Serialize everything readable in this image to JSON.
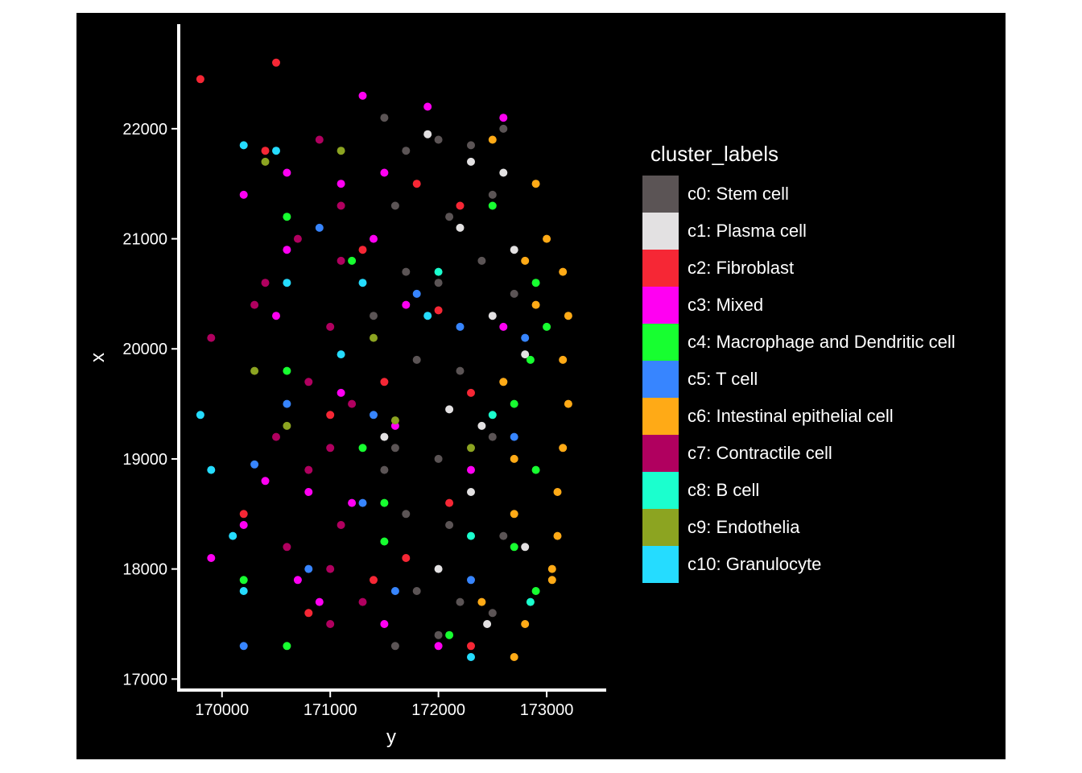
{
  "chart_data": {
    "type": "scatter",
    "xlabel": "y",
    "ylabel": "x",
    "xlim": [
      169600,
      173550
    ],
    "ylim": [
      16900,
      22950
    ],
    "xticks": [
      170000,
      171000,
      172000,
      173000
    ],
    "yticks": [
      17000,
      18000,
      19000,
      20000,
      21000,
      22000
    ],
    "xtick_labels": [
      "170000",
      "171000",
      "172000",
      "173000"
    ],
    "ytick_labels": [
      "17000",
      "18000",
      "19000",
      "20000",
      "21000",
      "22000"
    ],
    "legend_title": "cluster_labels",
    "legend_position": "right",
    "background": "#000000",
    "grid": false,
    "series": [
      {
        "name": "c0: Stem cell",
        "color": "#5B5455"
      },
      {
        "name": "c1: Plasma cell",
        "color": "#E3E1E2"
      },
      {
        "name": "c2: Fibroblast",
        "color": "#F62735"
      },
      {
        "name": "c3: Mixed",
        "color": "#FF00F2"
      },
      {
        "name": "c4: Macrophage and Dendritic cell",
        "color": "#17FF30"
      },
      {
        "name": "c5: T cell",
        "color": "#3785FF"
      },
      {
        "name": "c6: Intestinal epithelial cell",
        "color": "#FFAA16"
      },
      {
        "name": "c7: Contractile cell",
        "color": "#B0005F"
      },
      {
        "name": "c8: B cell",
        "color": "#1BFFCE"
      },
      {
        "name": "c9: Endothelia",
        "color": "#8CA421"
      },
      {
        "name": "c10: Granulocyte",
        "color": "#25DCFF"
      }
    ],
    "points": [
      [
        0,
        171500,
        22100
      ],
      [
        0,
        171700,
        21800
      ],
      [
        0,
        172000,
        21900
      ],
      [
        0,
        172300,
        21850
      ],
      [
        0,
        172600,
        22000
      ],
      [
        0,
        171600,
        21300
      ],
      [
        0,
        172100,
        21200
      ],
      [
        0,
        172500,
        21400
      ],
      [
        0,
        171700,
        20700
      ],
      [
        0,
        172000,
        20600
      ],
      [
        0,
        172400,
        20800
      ],
      [
        0,
        172700,
        20500
      ],
      [
        0,
        171800,
        19900
      ],
      [
        0,
        172200,
        19800
      ],
      [
        0,
        172600,
        19700
      ],
      [
        0,
        171600,
        19100
      ],
      [
        0,
        172000,
        19000
      ],
      [
        0,
        172500,
        19200
      ],
      [
        0,
        171700,
        18500
      ],
      [
        0,
        172100,
        18400
      ],
      [
        0,
        172600,
        18300
      ],
      [
        0,
        171800,
        17800
      ],
      [
        0,
        172200,
        17700
      ],
      [
        0,
        172500,
        17600
      ],
      [
        0,
        171600,
        17300
      ],
      [
        0,
        172000,
        17400
      ],
      [
        0,
        171400,
        20300
      ],
      [
        0,
        171500,
        18900
      ],
      [
        1,
        171900,
        21950
      ],
      [
        1,
        172300,
        21700
      ],
      [
        1,
        172600,
        21600
      ],
      [
        1,
        172200,
        21100
      ],
      [
        1,
        172700,
        20900
      ],
      [
        1,
        172500,
        20300
      ],
      [
        1,
        172800,
        19950
      ],
      [
        1,
        172100,
        19450
      ],
      [
        1,
        172400,
        19300
      ],
      [
        1,
        172300,
        18700
      ],
      [
        1,
        172800,
        18200
      ],
      [
        1,
        172000,
        18000
      ],
      [
        1,
        172450,
        17500
      ],
      [
        1,
        171500,
        19200
      ],
      [
        2,
        170500,
        22600
      ],
      [
        2,
        169800,
        22450
      ],
      [
        2,
        170400,
        21800
      ],
      [
        2,
        171800,
        21500
      ],
      [
        2,
        172200,
        21300
      ],
      [
        2,
        171300,
        20900
      ],
      [
        2,
        172000,
        20350
      ],
      [
        2,
        171500,
        19700
      ],
      [
        2,
        172300,
        19600
      ],
      [
        2,
        171000,
        19400
      ],
      [
        2,
        172100,
        18600
      ],
      [
        2,
        171700,
        18100
      ],
      [
        2,
        170200,
        18500
      ],
      [
        2,
        170800,
        17600
      ],
      [
        2,
        172300,
        17300
      ],
      [
        2,
        171400,
        17900
      ],
      [
        3,
        171300,
        22300
      ],
      [
        3,
        171900,
        22200
      ],
      [
        3,
        172600,
        22100
      ],
      [
        3,
        171500,
        21600
      ],
      [
        3,
        170600,
        21600
      ],
      [
        3,
        171100,
        21500
      ],
      [
        3,
        170200,
        21400
      ],
      [
        3,
        171400,
        21000
      ],
      [
        3,
        170600,
        20900
      ],
      [
        3,
        171700,
        20400
      ],
      [
        3,
        170500,
        20300
      ],
      [
        3,
        172600,
        20200
      ],
      [
        3,
        171100,
        19600
      ],
      [
        3,
        171600,
        19300
      ],
      [
        3,
        170400,
        18800
      ],
      [
        3,
        170800,
        18700
      ],
      [
        3,
        171200,
        18600
      ],
      [
        3,
        170200,
        18400
      ],
      [
        3,
        169900,
        18100
      ],
      [
        3,
        170700,
        17900
      ],
      [
        3,
        171500,
        17500
      ],
      [
        3,
        172000,
        17300
      ],
      [
        3,
        170900,
        17700
      ],
      [
        3,
        172300,
        18900
      ],
      [
        4,
        172500,
        21300
      ],
      [
        4,
        170600,
        21200
      ],
      [
        4,
        171200,
        20800
      ],
      [
        4,
        172900,
        20600
      ],
      [
        4,
        173000,
        20200
      ],
      [
        4,
        172850,
        19900
      ],
      [
        4,
        170600,
        19800
      ],
      [
        4,
        172700,
        19500
      ],
      [
        4,
        171300,
        19100
      ],
      [
        4,
        172900,
        18900
      ],
      [
        4,
        171500,
        18600
      ],
      [
        4,
        172700,
        18200
      ],
      [
        4,
        170200,
        17900
      ],
      [
        4,
        172900,
        17800
      ],
      [
        4,
        172100,
        17400
      ],
      [
        4,
        170600,
        17300
      ],
      [
        4,
        171500,
        18250
      ],
      [
        5,
        170900,
        21100
      ],
      [
        5,
        171800,
        20500
      ],
      [
        5,
        172800,
        20100
      ],
      [
        5,
        170600,
        19500
      ],
      [
        5,
        171400,
        19400
      ],
      [
        5,
        172700,
        19200
      ],
      [
        5,
        170300,
        18950
      ],
      [
        5,
        171300,
        18600
      ],
      [
        5,
        170800,
        18000
      ],
      [
        5,
        171600,
        17800
      ],
      [
        5,
        172300,
        17900
      ],
      [
        5,
        170200,
        17300
      ],
      [
        5,
        172200,
        20200
      ],
      [
        6,
        172500,
        21900
      ],
      [
        6,
        172900,
        21500
      ],
      [
        6,
        173000,
        21000
      ],
      [
        6,
        173150,
        20700
      ],
      [
        6,
        173200,
        20300
      ],
      [
        6,
        173150,
        19900
      ],
      [
        6,
        173200,
        19500
      ],
      [
        6,
        173150,
        19100
      ],
      [
        6,
        173100,
        18700
      ],
      [
        6,
        173100,
        18300
      ],
      [
        6,
        173050,
        17900
      ],
      [
        6,
        172800,
        17500
      ],
      [
        6,
        172700,
        17200
      ],
      [
        6,
        172600,
        19700
      ],
      [
        6,
        172700,
        19000
      ],
      [
        6,
        172700,
        18500
      ],
      [
        6,
        172900,
        20400
      ],
      [
        6,
        172400,
        17700
      ],
      [
        6,
        172800,
        20800
      ],
      [
        6,
        173050,
        18000
      ],
      [
        7,
        170900,
        21900
      ],
      [
        7,
        171100,
        21300
      ],
      [
        7,
        170700,
        21000
      ],
      [
        7,
        171100,
        20800
      ],
      [
        7,
        170400,
        20600
      ],
      [
        7,
        171000,
        20200
      ],
      [
        7,
        169900,
        20100
      ],
      [
        7,
        170800,
        19700
      ],
      [
        7,
        171200,
        19500
      ],
      [
        7,
        170500,
        19200
      ],
      [
        7,
        171000,
        19100
      ],
      [
        7,
        170800,
        18900
      ],
      [
        7,
        171100,
        18400
      ],
      [
        7,
        170600,
        18200
      ],
      [
        7,
        171300,
        17700
      ],
      [
        7,
        171000,
        17500
      ],
      [
        7,
        170300,
        20400
      ],
      [
        7,
        171000,
        18000
      ],
      [
        8,
        172000,
        20700
      ],
      [
        8,
        172500,
        19400
      ],
      [
        8,
        172300,
        18300
      ],
      [
        8,
        172850,
        17700
      ],
      [
        9,
        170400,
        21700
      ],
      [
        9,
        171100,
        21800
      ],
      [
        9,
        170300,
        19800
      ],
      [
        9,
        170600,
        19300
      ],
      [
        9,
        171400,
        20100
      ],
      [
        9,
        172300,
        19100
      ],
      [
        9,
        171600,
        19350
      ],
      [
        10,
        170200,
        21850
      ],
      [
        10,
        170500,
        21800
      ],
      [
        10,
        169800,
        19400
      ],
      [
        10,
        169900,
        18900
      ],
      [
        10,
        170600,
        20600
      ],
      [
        10,
        171100,
        19950
      ],
      [
        10,
        170100,
        18300
      ],
      [
        10,
        170200,
        17800
      ],
      [
        10,
        172300,
        17200
      ],
      [
        10,
        171900,
        20300
      ],
      [
        10,
        171300,
        20600
      ]
    ]
  }
}
